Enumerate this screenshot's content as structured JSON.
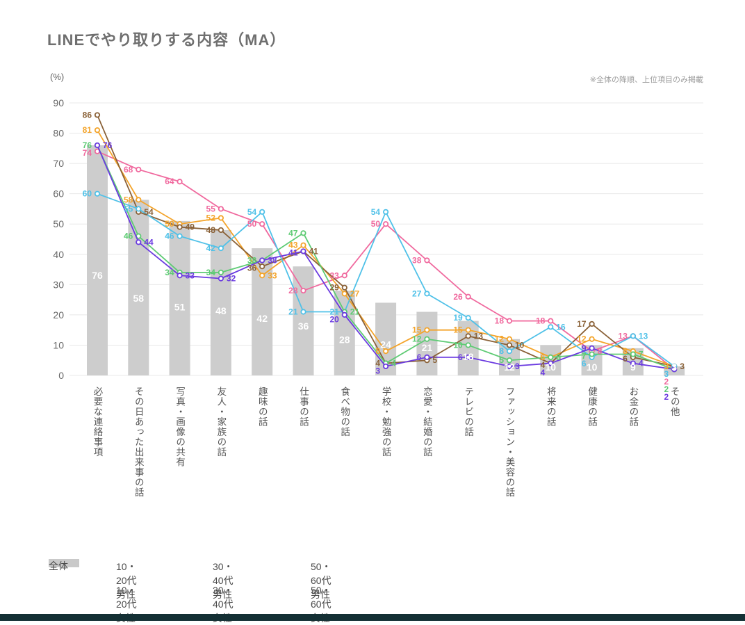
{
  "header": {
    "title": "LINEでやり取りする内容（MA）"
  },
  "note": "※全体の降順、上位項目のみ掲載",
  "colors": {
    "grid": "#e8e8e8",
    "axis_text": "#666666",
    "bar": "#cdcdcd",
    "bar_label": "#ffffff",
    "category_text": "#555555",
    "footer_bar": "#143034"
  },
  "chart_data": {
    "type": "bar+line combo",
    "title": "LINEでやり取りする内容（MA）",
    "ylabel": "(%)",
    "ylim": [
      0,
      90
    ],
    "yticks": [
      0,
      10,
      20,
      30,
      40,
      50,
      60,
      70,
      80,
      90
    ],
    "grid": true,
    "legend_position": "bottom",
    "categories": [
      "必要な連絡事項",
      "その日あった出来事の話",
      "写真・画像の共有",
      "友人・家族の話",
      "趣味の話",
      "仕事の話",
      "食べ物の話",
      "学校・勉強の話",
      "恋愛・結婚の話",
      "テレビの話",
      "ファッション・美容の話",
      "将来の話",
      "健康の話",
      "お金の話",
      "その他"
    ],
    "bar_series": {
      "name": "全体",
      "color": "#cdcdcd",
      "values": [
        76,
        58,
        51,
        48,
        42,
        36,
        28,
        24,
        21,
        18,
        12,
        10,
        10,
        9,
        3
      ]
    },
    "series": [
      {
        "name": "10・20代女性",
        "color": "#f0699e",
        "legend_row": 2,
        "values": [
          74,
          68,
          64,
          55,
          50,
          28,
          33,
          50,
          38,
          26,
          18,
          18,
          8,
          13,
          2
        ]
      },
      {
        "name": "30・40代女性",
        "color": "#f4a42a",
        "legend_row": 2,
        "values": [
          81,
          58,
          50,
          52,
          33,
          43,
          27,
          8,
          15,
          15,
          12,
          6,
          12,
          8,
          3
        ]
      },
      {
        "name": "50・60代女性",
        "color": "#8a6137",
        "legend_row": 2,
        "values": [
          86,
          54,
          49,
          48,
          36,
          41,
          29,
          4,
          5,
          13,
          10,
          4,
          17,
          6,
          3
        ]
      },
      {
        "name": "10・20代男性",
        "color": "#4fc1e8",
        "legend_row": 1,
        "values": [
          60,
          55,
          46,
          42,
          54,
          21,
          21,
          54,
          27,
          19,
          8,
          16,
          6,
          13,
          3
        ]
      },
      {
        "name": "30・40代男性",
        "color": "#5ecb74",
        "legend_row": 1,
        "values": [
          76,
          46,
          34,
          34,
          38,
          47,
          21,
          4,
          12,
          10,
          5,
          6,
          7,
          7,
          2
        ]
      },
      {
        "name": "50・60代男性",
        "color": "#6b3be0",
        "legend_row": 1,
        "values": [
          76,
          44,
          33,
          32,
          38,
          41,
          20,
          3,
          6,
          6,
          3,
          4,
          9,
          4,
          2
        ]
      }
    ]
  }
}
